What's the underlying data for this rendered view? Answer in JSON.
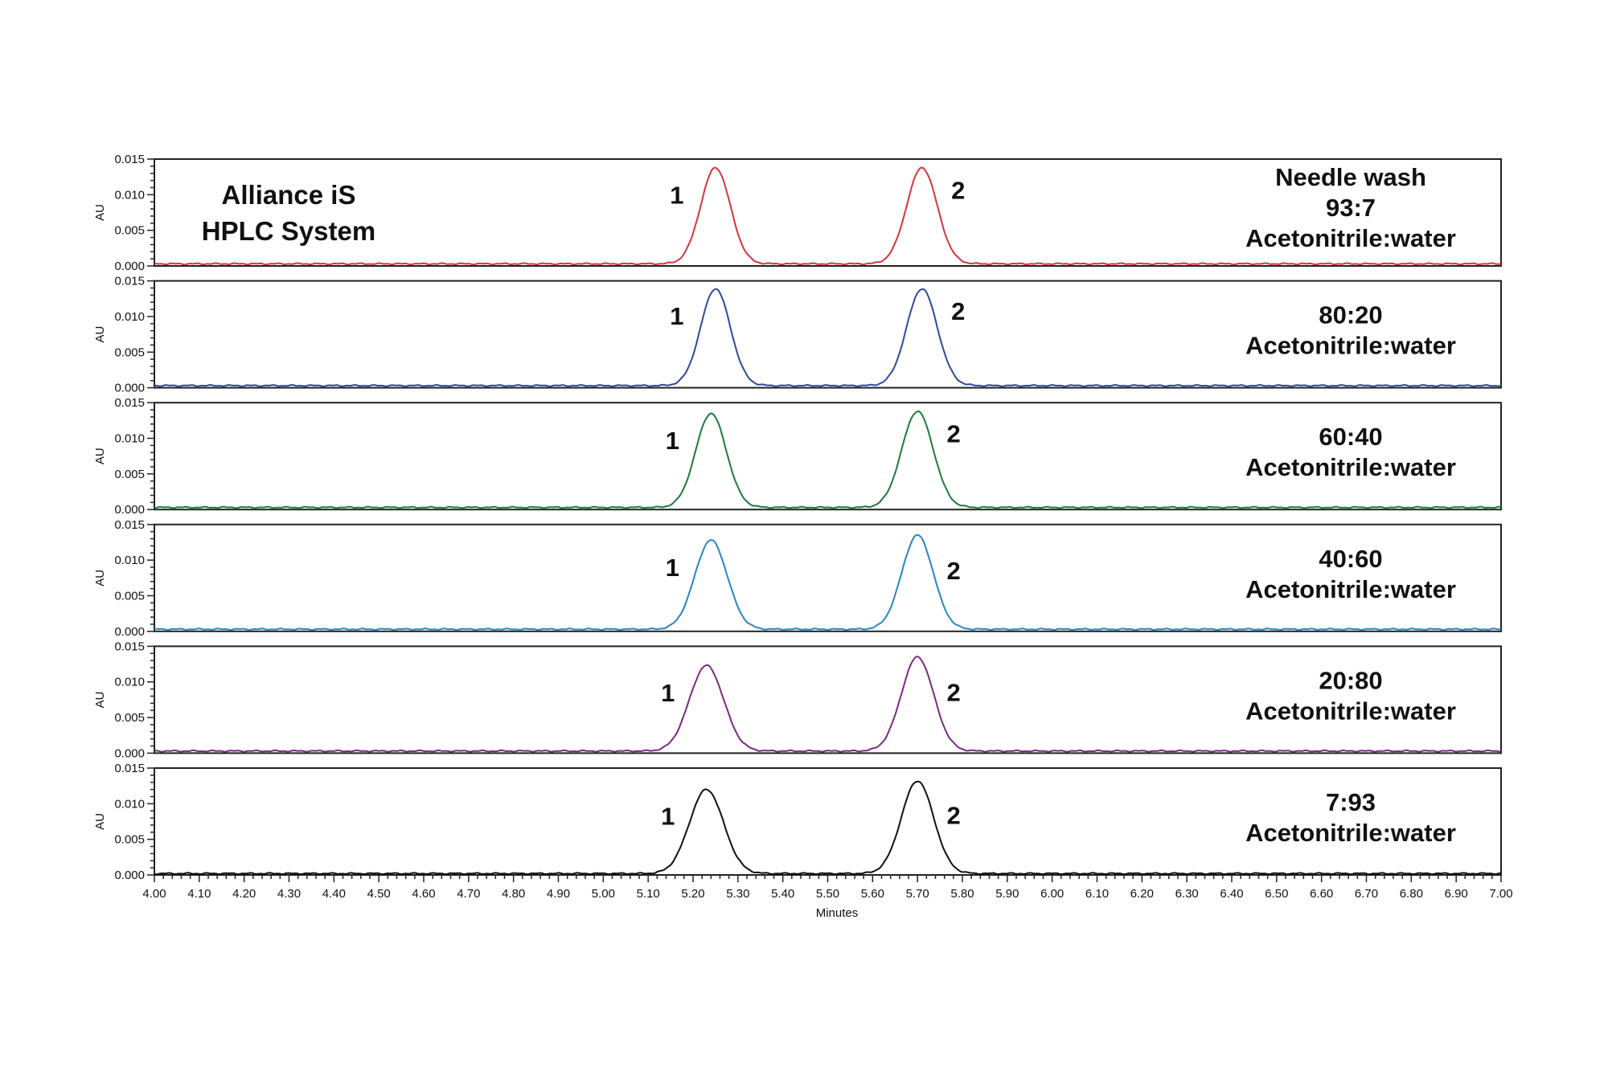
{
  "figure": {
    "title_lines": [
      "Alliance iS",
      "HPLC System"
    ],
    "x_axis_label": "Minutes",
    "y_axis_label": "AU"
  },
  "chart_data": {
    "type": "line",
    "title": "Alliance iS HPLC System",
    "xlabel": "Minutes",
    "ylabel": "AU",
    "xlim": [
      4.0,
      7.0
    ],
    "ylim": [
      0.0,
      0.015
    ],
    "x_ticks": [
      "4.00",
      "4.10",
      "4.20",
      "4.30",
      "4.40",
      "4.50",
      "4.60",
      "4.70",
      "4.80",
      "4.90",
      "5.00",
      "5.10",
      "5.20",
      "5.30",
      "5.40",
      "5.50",
      "5.60",
      "5.70",
      "5.80",
      "5.90",
      "6.00",
      "6.10",
      "6.20",
      "6.30",
      "6.40",
      "6.50",
      "6.60",
      "6.70",
      "6.80",
      "6.90",
      "7.00"
    ],
    "y_ticks": [
      "0.000",
      "0.005",
      "0.010",
      "0.015"
    ],
    "grid": false,
    "layout": "6 stacked panels sharing x-axis",
    "peak_labels": [
      "1",
      "2"
    ],
    "series": [
      {
        "name": "Needle wash 93:7 Acetonitrile:water",
        "label_lines": [
          "Needle wash",
          "93:7",
          "Acetonitrile:water"
        ],
        "color": "#d9343a",
        "baseline": 0.0003,
        "peaks": [
          {
            "label": "1",
            "rt": 5.25,
            "height": 0.0135,
            "sigma": 0.033
          },
          {
            "label": "2",
            "rt": 5.71,
            "height": 0.0135,
            "sigma": 0.034
          }
        ]
      },
      {
        "name": "80:20 Acetonitrile:water",
        "label_lines": [
          "80:20",
          "Acetonitrile:water"
        ],
        "color": "#2e4a9a",
        "baseline": 0.0003,
        "peaks": [
          {
            "label": "1",
            "rt": 5.25,
            "height": 0.0136,
            "sigma": 0.033
          },
          {
            "label": "2",
            "rt": 5.71,
            "height": 0.0136,
            "sigma": 0.034
          }
        ]
      },
      {
        "name": "60:40 Acetonitrile:water",
        "label_lines": [
          "60:40",
          "Acetonitrile:water"
        ],
        "color": "#1e7a3c",
        "baseline": 0.0003,
        "peaks": [
          {
            "label": "1",
            "rt": 5.24,
            "height": 0.0132,
            "sigma": 0.034
          },
          {
            "label": "2",
            "rt": 5.7,
            "height": 0.0135,
            "sigma": 0.035
          }
        ]
      },
      {
        "name": "40:60 Acetonitrile:water",
        "label_lines": [
          "40:60",
          "Acetonitrile:water"
        ],
        "color": "#2a85bf",
        "baseline": 0.0003,
        "peaks": [
          {
            "label": "1",
            "rt": 5.24,
            "height": 0.0125,
            "sigma": 0.036
          },
          {
            "label": "2",
            "rt": 5.7,
            "height": 0.0132,
            "sigma": 0.035
          }
        ]
      },
      {
        "name": "20:80 Acetonitrile:water",
        "label_lines": [
          "20:80",
          "Acetonitrile:water"
        ],
        "color": "#7a2a86",
        "baseline": 0.0003,
        "peaks": [
          {
            "label": "1",
            "rt": 5.23,
            "height": 0.012,
            "sigma": 0.038
          },
          {
            "label": "2",
            "rt": 5.7,
            "height": 0.0132,
            "sigma": 0.036
          }
        ]
      },
      {
        "name": "7:93 Acetonitrile:water",
        "label_lines": [
          "7:93",
          "Acetonitrile:water"
        ],
        "color": "#111111",
        "baseline": 0.0002,
        "peaks": [
          {
            "label": "1",
            "rt": 5.23,
            "height": 0.0118,
            "sigma": 0.038
          },
          {
            "label": "2",
            "rt": 5.7,
            "height": 0.013,
            "sigma": 0.036
          }
        ]
      }
    ]
  }
}
